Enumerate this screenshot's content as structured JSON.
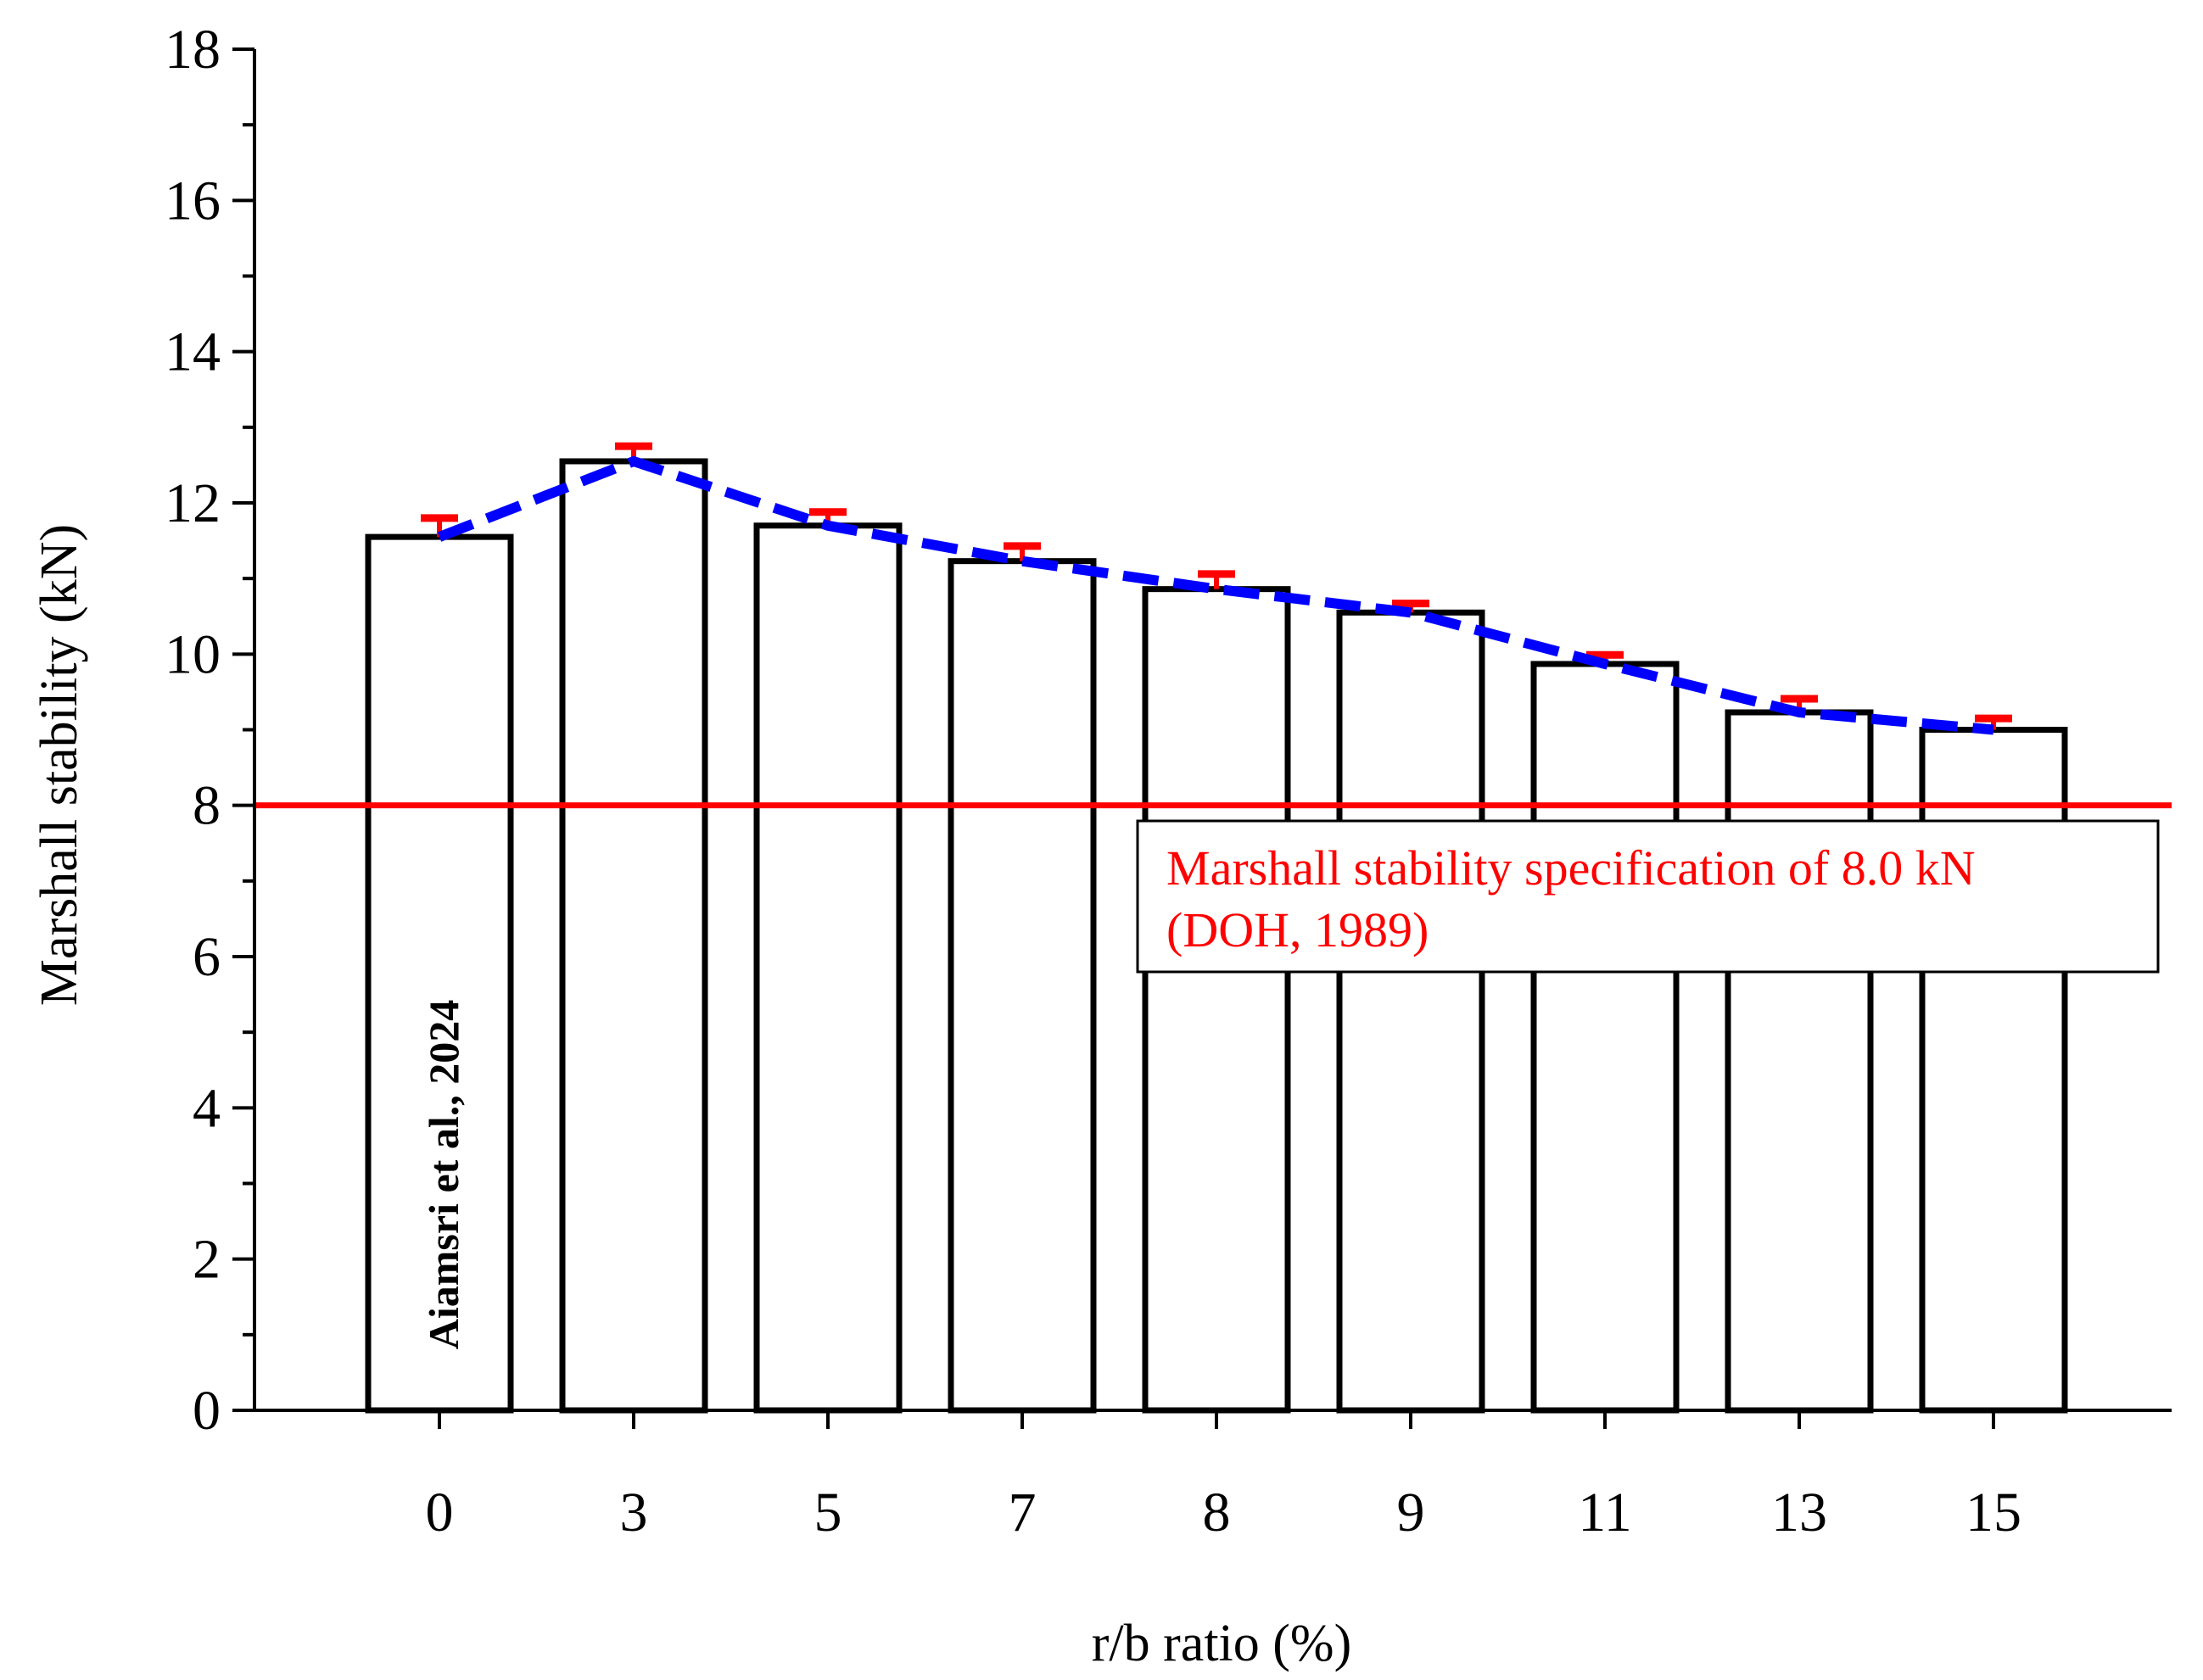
{
  "chart_data": {
    "type": "bar",
    "title": "",
    "xlabel": "r/b ratio (%)",
    "ylabel": "Marshall stability (kN)",
    "categories": [
      "0",
      "3",
      "5",
      "7",
      "8",
      "9",
      "11",
      "13",
      "15"
    ],
    "series": [
      {
        "name": "Marshall stability",
        "values": [
          11.55,
          12.55,
          11.7,
          11.23,
          10.86,
          10.55,
          9.87,
          9.23,
          9.0
        ],
        "errors": [
          0.25,
          0.2,
          0.18,
          0.2,
          0.2,
          0.12,
          0.12,
          0.18,
          0.15
        ],
        "trend_line": "dashed",
        "trend_color": "#0000FF",
        "error_color": "#FF0000"
      }
    ],
    "ylim": [
      0,
      18
    ],
    "yticks": [
      0,
      2,
      4,
      6,
      8,
      10,
      12,
      14,
      16,
      18
    ],
    "grid": false,
    "reference_line": {
      "value": 8.0,
      "color": "#FF0000",
      "label_line1": "Marshall stability specification of 8.0 kN",
      "label_line2": "(DOH, 1989)"
    },
    "watermark": "Aiamsri et al., 2024"
  }
}
